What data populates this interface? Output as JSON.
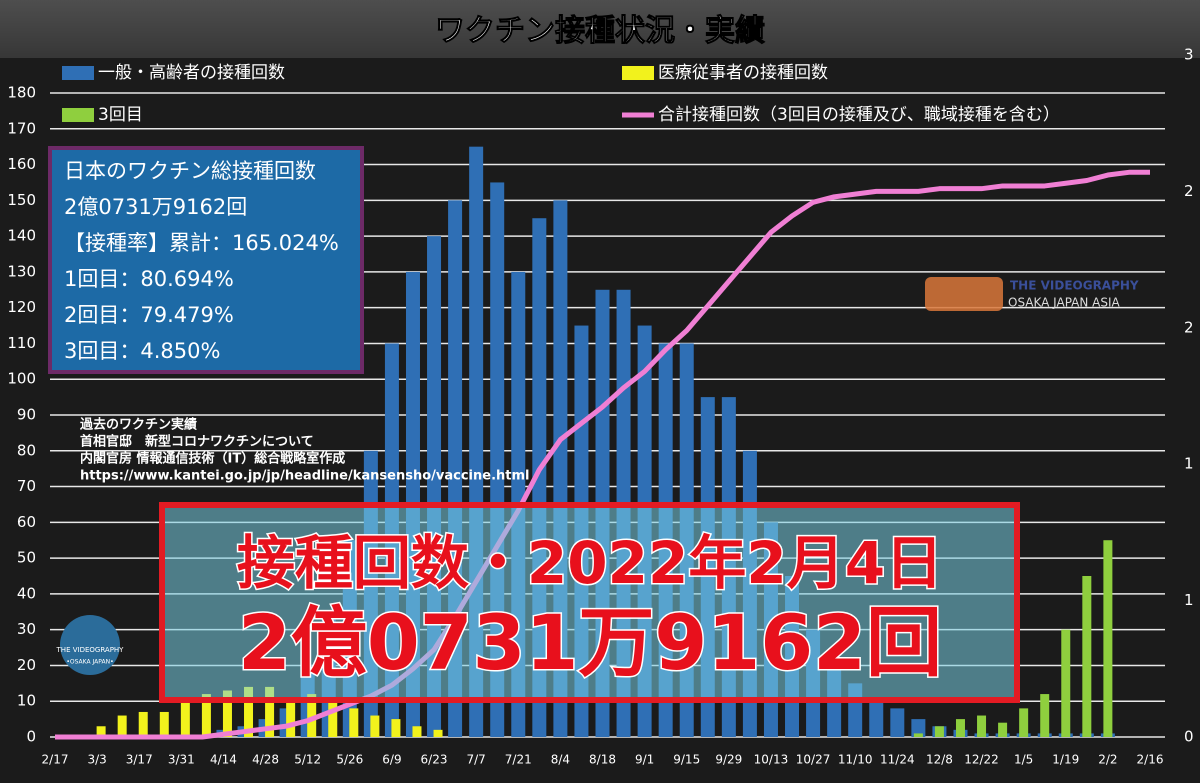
{
  "chart_data": {
    "type": "bar",
    "title": "ワクチン接種状況・実績",
    "categories": [
      "2/17",
      null,
      "3/3",
      null,
      "3/17",
      null,
      "3/31",
      null,
      "4/14",
      null,
      "4/28",
      null,
      "5/12",
      null,
      "5/26",
      null,
      "6/9",
      null,
      "6/23",
      null,
      "7/7",
      null,
      "7/21",
      null,
      "8/4",
      null,
      "8/18",
      null,
      "9/1",
      null,
      "9/15",
      null,
      "9/29",
      null,
      "10/13",
      null,
      "10/27",
      null,
      "11/10",
      null,
      "11/24",
      null,
      "12/8",
      null,
      "12/22",
      null,
      "1/5",
      null,
      "1/19",
      null,
      "2/2",
      null,
      "2/16"
    ],
    "series": [
      {
        "name": "一般・高齢者の接種回数",
        "color": "#2f6fb5",
        "values": [
          0,
          0,
          0,
          0,
          0,
          0,
          0,
          0,
          2,
          3,
          5,
          8,
          20,
          35,
          55,
          80,
          110,
          130,
          140,
          150,
          165,
          155,
          130,
          145,
          150,
          115,
          125,
          125,
          115,
          110,
          110,
          95,
          95,
          80,
          60,
          45,
          30,
          20,
          15,
          10,
          8,
          5,
          3,
          2,
          1,
          1,
          1,
          1,
          1,
          1,
          1,
          0,
          0
        ]
      },
      {
        "name": "医療従事者の接種回数",
        "color": "#f2f21c",
        "values": [
          0,
          0,
          3,
          6,
          7,
          7,
          10,
          12,
          13,
          14,
          14,
          10,
          12,
          10,
          8,
          6,
          5,
          3,
          2,
          0,
          0,
          0,
          0,
          0,
          0,
          0,
          0,
          0,
          0,
          0,
          0,
          0,
          0,
          0,
          0,
          0,
          0,
          0,
          0,
          0,
          0,
          0,
          0,
          0,
          0,
          0,
          0,
          0,
          0,
          0,
          0,
          0,
          0
        ]
      },
      {
        "name": "3回目",
        "color": "#8fcf3e",
        "values": [
          0,
          0,
          0,
          0,
          0,
          0,
          0,
          0,
          0,
          0,
          0,
          0,
          0,
          0,
          0,
          0,
          0,
          0,
          0,
          0,
          0,
          0,
          0,
          0,
          0,
          0,
          0,
          0,
          0,
          0,
          0,
          0,
          0,
          0,
          0,
          0,
          0,
          0,
          0,
          0,
          0,
          1,
          3,
          5,
          6,
          4,
          8,
          12,
          30,
          45,
          55,
          0,
          0
        ]
      },
      {
        "name": "合計接種回数（3回目の接種及び、職域接種を含む）",
        "color": "#f07fd4",
        "axis": "y2",
        "values": [
          0,
          0,
          0,
          0,
          0,
          0,
          0,
          0,
          0.01,
          0.02,
          0.03,
          0.04,
          0.06,
          0.09,
          0.12,
          0.15,
          0.19,
          0.25,
          0.32,
          0.44,
          0.57,
          0.7,
          0.83,
          0.98,
          1.09,
          1.15,
          1.21,
          1.28,
          1.34,
          1.42,
          1.49,
          1.58,
          1.67,
          1.76,
          1.85,
          1.91,
          1.96,
          1.98,
          1.99,
          2.0,
          2.0,
          2.0,
          2.01,
          2.01,
          2.01,
          2.02,
          2.02,
          2.02,
          2.03,
          2.04,
          2.06,
          2.07,
          2.07
        ]
      }
    ],
    "ylim": [
      0,
      180
    ],
    "yticks": [
      0,
      10,
      20,
      30,
      40,
      50,
      60,
      70,
      80,
      90,
      100,
      110,
      120,
      130,
      140,
      150,
      160,
      170,
      180
    ],
    "y2lim": [
      0,
      2.5
    ],
    "y2ticks": [
      {
        "value": 0,
        "label": "0"
      },
      {
        "value": 0.5,
        "label": "1"
      },
      {
        "value": 1,
        "label": "1"
      },
      {
        "value": 1.5,
        "label": "2"
      },
      {
        "value": 2,
        "label": "2"
      },
      {
        "value": 2.5,
        "label": "3"
      }
    ],
    "grid": true,
    "info_box": [
      "日本のワクチン総接種回数",
      "2億0731万9162回",
      "【接種率】累計：165.024%",
      "1回目：80.694%",
      "2回目：79.479%",
      "3回目：4.850%"
    ],
    "source": [
      "過去のワクチン実績",
      "首相官邸　新型コロナワクチンについて",
      "内閣官房 情報通信技術（IT）総合戦略室作成",
      "https://www.kantei.go.jp/jp/headline/kansensho/vaccine.html"
    ],
    "banner": [
      "接種回数・2022年2月4日",
      "2億0731万9162回"
    ],
    "watermark": [
      "THE VIDEOGRAPHY",
      "OSAKA JAPAN ASIA",
      "THE VIDEOGRAPHY",
      "•OSAKA JAPAN•"
    ]
  }
}
